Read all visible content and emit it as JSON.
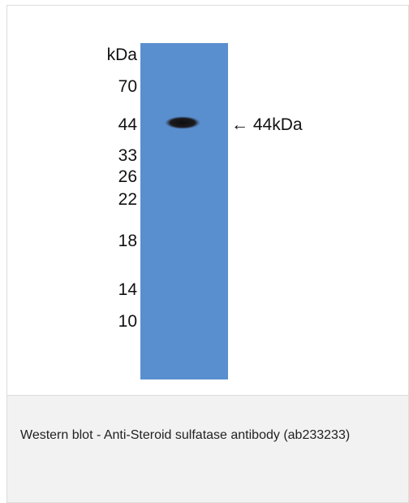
{
  "figure": {
    "ladder_unit": "kDa",
    "markers": [
      "70",
      "44",
      "33",
      "26",
      "22",
      "18",
      "14",
      "10"
    ],
    "band_label": "← 44kDa",
    "blot_color": "#5a8fcf",
    "band_color": "#111111"
  },
  "caption": {
    "text": "Western blot - Anti-Steroid sulfatase antibody (ab233233)"
  }
}
